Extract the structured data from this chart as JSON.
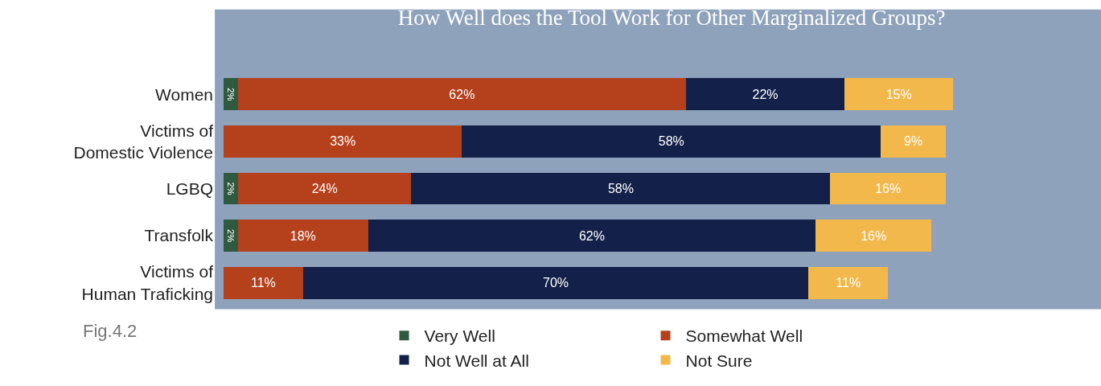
{
  "chart_data": {
    "type": "bar",
    "orientation": "horizontal",
    "stacked": true,
    "title": "How Well does the Tool Work for Other Marginalized Groups?",
    "categories": [
      "Women",
      "Victims of\nDomestic Violence",
      "LGBQ",
      "Transfolk",
      "Victims of\nHuman Traficking"
    ],
    "series": [
      {
        "name": "Very Well",
        "color": "#2f5a3f",
        "values": [
          2,
          null,
          2,
          2,
          null
        ],
        "value_labels": [
          "2%",
          null,
          "2%",
          "2%",
          null
        ]
      },
      {
        "name": "Somewhat Well",
        "color": "#b5401c",
        "values": [
          62,
          33,
          24,
          18,
          11
        ],
        "value_labels": [
          "62%",
          "33%",
          "24%",
          "18%",
          "11%"
        ]
      },
      {
        "name": "Not Well at All",
        "color": "#13214a",
        "values": [
          22,
          58,
          58,
          62,
          70
        ],
        "value_labels": [
          "22%",
          "58%",
          "58%",
          "62%",
          "70%"
        ]
      },
      {
        "name": "Not Sure",
        "color": "#f2b84b",
        "values": [
          15,
          9,
          16,
          16,
          11
        ],
        "value_labels": [
          "15%",
          "9%",
          "16%",
          "16%",
          "11%"
        ]
      }
    ],
    "xlim": [
      0,
      101
    ],
    "tick_labels": "y",
    "grid": false,
    "legend": "bottom",
    "annotations": [
      "Fig.4.2"
    ]
  }
}
